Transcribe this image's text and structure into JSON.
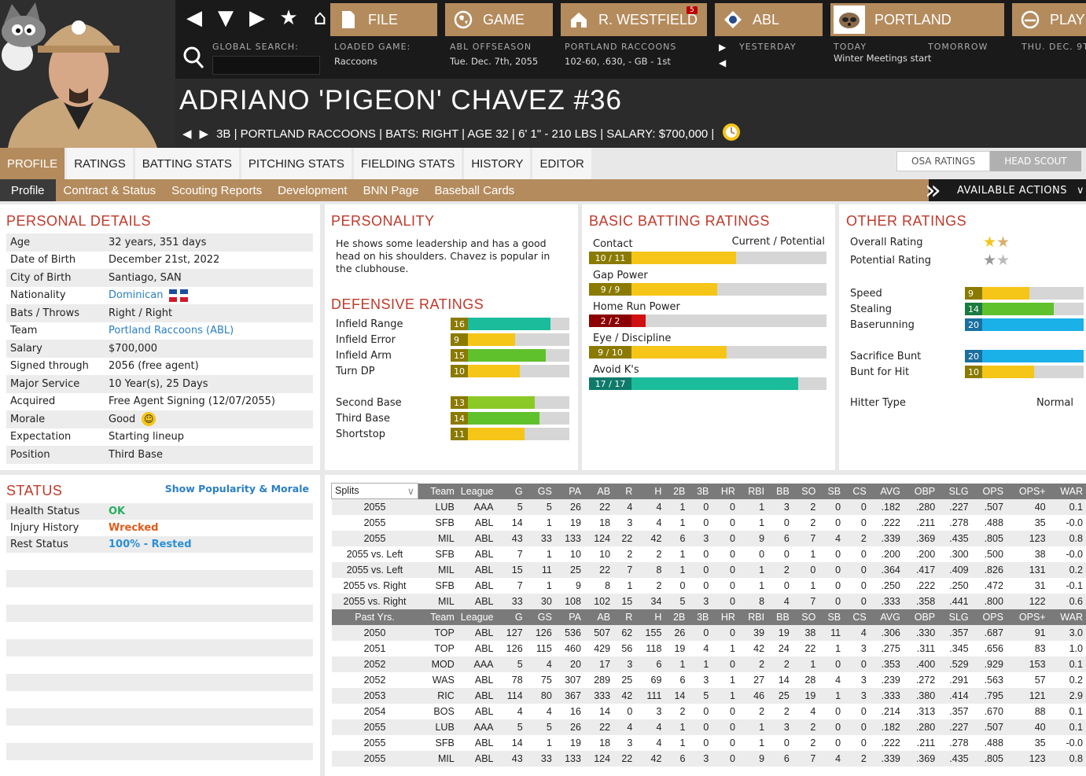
{
  "global_search": {
    "label": "GLOBAL SEARCH:"
  },
  "header": {
    "file": "FILE",
    "game": "GAME",
    "user": "R. WESTFIELD",
    "user_badge": "5",
    "league": "ABL",
    "team": "PORTLAND",
    "play": "PLAY",
    "loaded_label": "LOADED GAME:",
    "loaded_value": "Raccoons",
    "phase_label": "ABL OFFSEASON",
    "phase_date": "Tue. Dec. 7th, 2055",
    "team_label": "PORTLAND RACCOONS",
    "team_record": "102-60, .630, - GB - 1st",
    "yesterday": "YESTERDAY",
    "today": "TODAY",
    "today_event": "Winter Meetings start",
    "tomorrow": "TOMORROW",
    "next_date": "THU. DEC. 9T"
  },
  "player": {
    "name": "ADRIANO 'PIGEON' CHAVEZ  #36",
    "info": "3B | PORTLAND RACCOONS  |  BATS: RIGHT  |  AGE 32  |  6' 1\" - 210 LBS  |  SALARY: $700,000  |"
  },
  "tabs": [
    "PROFILE",
    "RATINGS",
    "BATTING STATS",
    "PITCHING STATS",
    "FIELDING STATS",
    "HISTORY",
    "EDITOR"
  ],
  "toggle": {
    "osa": "OSA RATINGS",
    "head": "HEAD SCOUT"
  },
  "subtabs": [
    "Profile",
    "Contract & Status",
    "Scouting Reports",
    "Development",
    "BNN Page",
    "Baseball Cards"
  ],
  "available_actions": "AVAILABLE ACTIONS",
  "personal": {
    "title": "PERSONAL DETAILS",
    "rows": [
      {
        "k": "Age",
        "v": "32 years, 351 days"
      },
      {
        "k": "Date of Birth",
        "v": "December 21st, 2022"
      },
      {
        "k": "City of Birth",
        "v": "Santiago, SAN"
      },
      {
        "k": "Nationality",
        "v": "Dominican"
      },
      {
        "k": "Bats / Throws",
        "v": "Right / Right"
      },
      {
        "k": "Team",
        "v": "Portland Raccoons (ABL)"
      },
      {
        "k": "Salary",
        "v": "$700,000"
      },
      {
        "k": "Signed through",
        "v": "2056 (free agent)"
      },
      {
        "k": "Major Service",
        "v": "10 Year(s), 25 Days"
      },
      {
        "k": "Acquired",
        "v": "Free Agent Signing (12/07/2055)"
      },
      {
        "k": "Morale",
        "v": "Good"
      },
      {
        "k": "Expectation",
        "v": "Starting lineup"
      },
      {
        "k": "Position",
        "v": "Third Base"
      }
    ]
  },
  "personality": {
    "title": "PERSONALITY",
    "text": "He shows some leadership and has a good head on his shoulders. Chavez is popular in the clubhouse."
  },
  "defensive": {
    "title": "DEFENSIVE RATINGS",
    "items": [
      {
        "label": "Infield Range",
        "value": "16",
        "level": 0.84,
        "color": "#1abc9c"
      },
      {
        "label": "Infield Error",
        "value": "9",
        "level": 0.54,
        "color": "#f5c518"
      },
      {
        "label": "Infield Arm",
        "value": "15",
        "level": 0.8,
        "color": "#5fc12c"
      },
      {
        "label": "Turn DP",
        "value": "10",
        "level": 0.58,
        "color": "#f5c518"
      },
      {
        "label": "Second Base",
        "value": "13",
        "level": 0.71,
        "color": "#8bc926"
      },
      {
        "label": "Third Base",
        "value": "14",
        "level": 0.75,
        "color": "#5fc12c"
      },
      {
        "label": "Shortstop",
        "value": "11",
        "level": 0.62,
        "color": "#f5c518"
      }
    ]
  },
  "batting": {
    "title": "BASIC BATTING RATINGS",
    "cp_label": "Current / Potential",
    "items": [
      {
        "label": "Contact",
        "value": "10 / 11",
        "level": 0.62,
        "color": "#f5c518"
      },
      {
        "label": "Gap Power",
        "value": "9 / 9",
        "level": 0.54,
        "color": "#f5c518"
      },
      {
        "label": "Home Run Power",
        "value": "2 / 2",
        "level": 0.24,
        "color": "#d01010"
      },
      {
        "label": "Eye / Discipline",
        "value": "9 / 10",
        "level": 0.58,
        "color": "#f5c518"
      },
      {
        "label": "Avoid K's",
        "value": "17 / 17",
        "level": 0.88,
        "color": "#1abc9c"
      }
    ]
  },
  "other": {
    "title": "OTHER RATINGS",
    "overall": "Overall Rating",
    "potential": "Potential Rating",
    "items": [
      {
        "label": "Speed",
        "value": "9",
        "level": 0.54,
        "color": "#f5c518"
      },
      {
        "label": "Stealing",
        "value": "14",
        "level": 0.75,
        "color": "#5fc12c"
      },
      {
        "label": "Baserunning",
        "value": "20",
        "level": 1.0,
        "color": "#1ab0e8"
      },
      {
        "label": "Sacrifice Bunt",
        "value": "20",
        "level": 1.0,
        "color": "#1ab0e8"
      },
      {
        "label": "Bunt for Hit",
        "value": "10",
        "level": 0.58,
        "color": "#f5c518"
      }
    ],
    "hitter_type_label": "Hitter Type",
    "hitter_type": "Normal"
  },
  "status": {
    "title": "STATUS",
    "link": "Show Popularity & Morale",
    "rows": [
      {
        "k": "Health Status",
        "v": "OK",
        "color": "#27ae60"
      },
      {
        "k": "Injury History",
        "v": "Wrecked",
        "color": "#e05a1a"
      },
      {
        "k": "Rest Status",
        "v": "100% - Rested",
        "color": "#2a8fd8"
      }
    ]
  },
  "stats": {
    "columns": [
      "Splits",
      "Team",
      "League",
      "G",
      "GS",
      "PA",
      "AB",
      "R",
      "H",
      "2B",
      "3B",
      "HR",
      "RBI",
      "BB",
      "SO",
      "SB",
      "CS",
      "AVG",
      "OBP",
      "SLG",
      "OPS",
      "OPS+",
      "WAR"
    ],
    "past_columns": [
      "Past Yrs.",
      "Team",
      "League",
      "G",
      "GS",
      "PA",
      "AB",
      "R",
      "H",
      "2B",
      "3B",
      "HR",
      "RBI",
      "BB",
      "SO",
      "SB",
      "CS",
      "AVG",
      "OBP",
      "SLG",
      "OPS",
      "OPS+",
      "WAR"
    ],
    "splits": [
      [
        "2055",
        "LUB",
        "AAA",
        "5",
        "5",
        "26",
        "22",
        "4",
        "4",
        "1",
        "0",
        "0",
        "1",
        "3",
        "2",
        "0",
        "0",
        ".182",
        ".280",
        ".227",
        ".507",
        "40",
        "0.1"
      ],
      [
        "2055",
        "SFB",
        "ABL",
        "14",
        "1",
        "19",
        "18",
        "3",
        "4",
        "1",
        "0",
        "0",
        "1",
        "0",
        "2",
        "0",
        "0",
        ".222",
        ".211",
        ".278",
        ".488",
        "35",
        "-0.0"
      ],
      [
        "2055",
        "MIL",
        "ABL",
        "43",
        "33",
        "133",
        "124",
        "22",
        "42",
        "6",
        "3",
        "0",
        "9",
        "6",
        "7",
        "4",
        "2",
        ".339",
        ".369",
        ".435",
        ".805",
        "123",
        "0.8"
      ],
      [
        "2055 vs. Left",
        "SFB",
        "ABL",
        "7",
        "1",
        "10",
        "10",
        "2",
        "2",
        "1",
        "0",
        "0",
        "0",
        "0",
        "1",
        "0",
        "0",
        ".200",
        ".200",
        ".300",
        ".500",
        "38",
        "-0.0"
      ],
      [
        "2055 vs. Left",
        "MIL",
        "ABL",
        "15",
        "11",
        "25",
        "22",
        "7",
        "8",
        "1",
        "0",
        "0",
        "1",
        "2",
        "0",
        "0",
        "0",
        ".364",
        ".417",
        ".409",
        ".826",
        "131",
        "0.2"
      ],
      [
        "2055 vs. Right",
        "SFB",
        "ABL",
        "7",
        "1",
        "9",
        "8",
        "1",
        "2",
        "0",
        "0",
        "0",
        "1",
        "0",
        "1",
        "0",
        "0",
        ".250",
        ".222",
        ".250",
        ".472",
        "31",
        "-0.1"
      ],
      [
        "2055 vs. Right",
        "MIL",
        "ABL",
        "33",
        "30",
        "108",
        "102",
        "15",
        "34",
        "5",
        "3",
        "0",
        "8",
        "4",
        "7",
        "0",
        "0",
        ".333",
        ".358",
        ".441",
        ".800",
        "122",
        "0.6"
      ]
    ],
    "past": [
      [
        "2050",
        "TOP",
        "ABL",
        "127",
        "126",
        "536",
        "507",
        "62",
        "155",
        "26",
        "0",
        "0",
        "39",
        "19",
        "38",
        "11",
        "4",
        ".306",
        ".330",
        ".357",
        ".687",
        "91",
        "3.0"
      ],
      [
        "2051",
        "TOP",
        "ABL",
        "126",
        "115",
        "460",
        "429",
        "56",
        "118",
        "19",
        "4",
        "1",
        "42",
        "24",
        "22",
        "1",
        "3",
        ".275",
        ".311",
        ".345",
        ".656",
        "83",
        "1.0"
      ],
      [
        "2052",
        "MOD",
        "AAA",
        "5",
        "4",
        "20",
        "17",
        "3",
        "6",
        "1",
        "1",
        "0",
        "2",
        "2",
        "1",
        "0",
        "0",
        ".353",
        ".400",
        ".529",
        ".929",
        "153",
        "0.1"
      ],
      [
        "2052",
        "WAS",
        "ABL",
        "78",
        "75",
        "307",
        "289",
        "25",
        "69",
        "6",
        "3",
        "1",
        "27",
        "14",
        "28",
        "4",
        "3",
        ".239",
        ".272",
        ".291",
        ".563",
        "57",
        "0.2"
      ],
      [
        "2053",
        "RIC",
        "ABL",
        "114",
        "80",
        "367",
        "333",
        "42",
        "111",
        "14",
        "5",
        "1",
        "46",
        "25",
        "19",
        "1",
        "3",
        ".333",
        ".380",
        ".414",
        ".795",
        "121",
        "2.9"
      ],
      [
        "2054",
        "BOS",
        "ABL",
        "4",
        "4",
        "16",
        "14",
        "0",
        "3",
        "2",
        "0",
        "0",
        "2",
        "2",
        "4",
        "0",
        "0",
        ".214",
        ".313",
        ".357",
        ".670",
        "88",
        "0.1"
      ],
      [
        "2055",
        "LUB",
        "AAA",
        "5",
        "5",
        "26",
        "22",
        "4",
        "4",
        "1",
        "0",
        "0",
        "1",
        "3",
        "2",
        "0",
        "0",
        ".182",
        ".280",
        ".227",
        ".507",
        "40",
        "0.1"
      ],
      [
        "2055",
        "SFB",
        "ABL",
        "14",
        "1",
        "19",
        "18",
        "3",
        "4",
        "1",
        "0",
        "0",
        "1",
        "0",
        "2",
        "0",
        "0",
        ".222",
        ".211",
        ".278",
        ".488",
        "35",
        "-0.0"
      ],
      [
        "2055",
        "MIL",
        "ABL",
        "43",
        "33",
        "133",
        "124",
        "22",
        "42",
        "6",
        "3",
        "0",
        "9",
        "6",
        "7",
        "4",
        "2",
        ".339",
        ".369",
        ".435",
        ".805",
        "123",
        "0.8"
      ]
    ]
  }
}
